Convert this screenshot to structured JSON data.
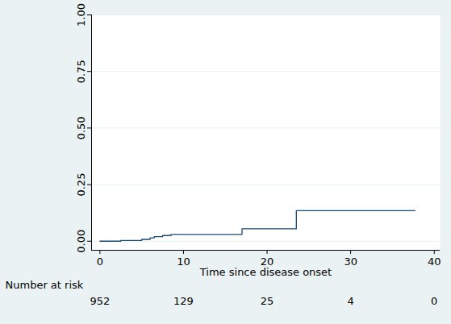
{
  "chart_data": {
    "type": "step",
    "x_label": "Time since disease onset",
    "x": [
      0,
      2.5,
      5,
      6,
      6.5,
      7.5,
      8.5,
      17,
      23.5,
      37.7
    ],
    "values": [
      0,
      0.003,
      0.008,
      0.015,
      0.02,
      0.025,
      0.03,
      0.055,
      0.135,
      0.135
    ],
    "color": "#1a476f",
    "xlim": [
      -1,
      40.7
    ],
    "xticks": [
      0,
      10,
      20,
      30,
      40
    ],
    "ylim": [
      -0.04,
      1.0
    ],
    "yticks": [
      {
        "value": 0,
        "label": "0.00"
      },
      {
        "value": 0.25,
        "label": "0.25"
      },
      {
        "value": 0.5,
        "label": "0.50"
      },
      {
        "value": 0.75,
        "label": "0.75"
      },
      {
        "value": 1,
        "label": "1.00"
      }
    ],
    "grid": true,
    "number_at_risk": {
      "label": "Number at risk",
      "x": [
        0,
        10,
        20,
        30,
        40
      ],
      "values": [
        952,
        129,
        25,
        4,
        0
      ]
    }
  }
}
